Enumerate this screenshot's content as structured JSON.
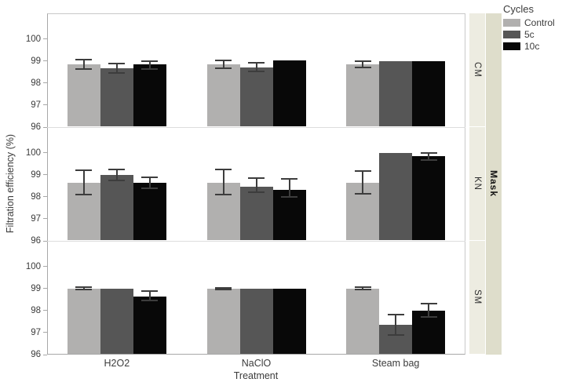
{
  "figure": {
    "ylabel": "Filtration efficiency (%)",
    "xlabel": "Treatment",
    "legend_title": "Cycles",
    "facet_strip_title": "Mask"
  },
  "chart_data": {
    "type": "bar",
    "title": "",
    "xlabel": "Treatment",
    "ylabel": "Filtration efficiency (%)",
    "legend_title": "Cycles",
    "legend_position": "top-right",
    "grid": false,
    "categories": [
      "H2O2",
      "NaClO",
      "Steam bag"
    ],
    "series_names": [
      "Control",
      "5c",
      "10c"
    ],
    "colors": {
      "Control": "#b1b0af",
      "5c": "#565656",
      "10c": "#080808"
    },
    "error_bar_color": "#3d3d3d",
    "facet_row_label": "Mask",
    "facet_rows": [
      "CM",
      "KN",
      "SM"
    ],
    "ylim": [
      96,
      101.16
    ],
    "yticks": [
      96,
      97,
      98,
      99,
      100
    ],
    "panels": [
      {
        "mask": "CM",
        "groups": [
          {
            "treatment": "H2O2",
            "values": [
              98.85,
              98.68,
              98.85
            ],
            "err_hi": [
              99.05,
              98.9,
              99.0
            ],
            "err_lo": [
              98.65,
              98.45,
              98.65
            ]
          },
          {
            "treatment": "NaClO",
            "values": [
              98.85,
              98.72,
              99.03
            ],
            "err_hi": [
              99.02,
              98.92,
              null
            ],
            "err_lo": [
              98.68,
              98.52,
              null
            ]
          },
          {
            "treatment": "Steam bag",
            "values": [
              98.85,
              98.98,
              99.0
            ],
            "err_hi": [
              99.0,
              null,
              null
            ],
            "err_lo": [
              98.7,
              null,
              null
            ]
          }
        ]
      },
      {
        "mask": "KN",
        "groups": [
          {
            "treatment": "H2O2",
            "values": [
              98.65,
              99.0,
              98.65
            ],
            "err_hi": [
              99.2,
              99.25,
              98.9
            ],
            "err_lo": [
              98.1,
              98.75,
              98.4
            ]
          },
          {
            "treatment": "NaClO",
            "values": [
              98.65,
              98.45,
              98.3
            ],
            "err_hi": [
              99.25,
              98.85,
              98.8
            ],
            "err_lo": [
              98.1,
              98.2,
              98.0
            ]
          },
          {
            "treatment": "Steam bag",
            "values": [
              98.65,
              100.0,
              99.85
            ],
            "err_hi": [
              99.15,
              null,
              100.0
            ],
            "err_lo": [
              98.15,
              null,
              99.65
            ]
          }
        ]
      },
      {
        "mask": "SM",
        "groups": [
          {
            "treatment": "H2O2",
            "values": [
              99.0,
              99.0,
              98.65
            ],
            "err_hi": [
              99.05,
              null,
              98.9
            ],
            "err_lo": [
              98.95,
              null,
              98.45
            ]
          },
          {
            "treatment": "NaClO",
            "values": [
              99.0,
              99.0,
              99.0
            ],
            "err_hi": [
              99.04,
              null,
              null
            ],
            "err_lo": [
              98.96,
              null,
              null
            ]
          },
          {
            "treatment": "Steam bag",
            "values": [
              99.0,
              97.35,
              98.0
            ],
            "err_hi": [
              99.05,
              97.8,
              98.3
            ],
            "err_lo": [
              98.95,
              96.9,
              97.7
            ]
          }
        ]
      }
    ]
  }
}
